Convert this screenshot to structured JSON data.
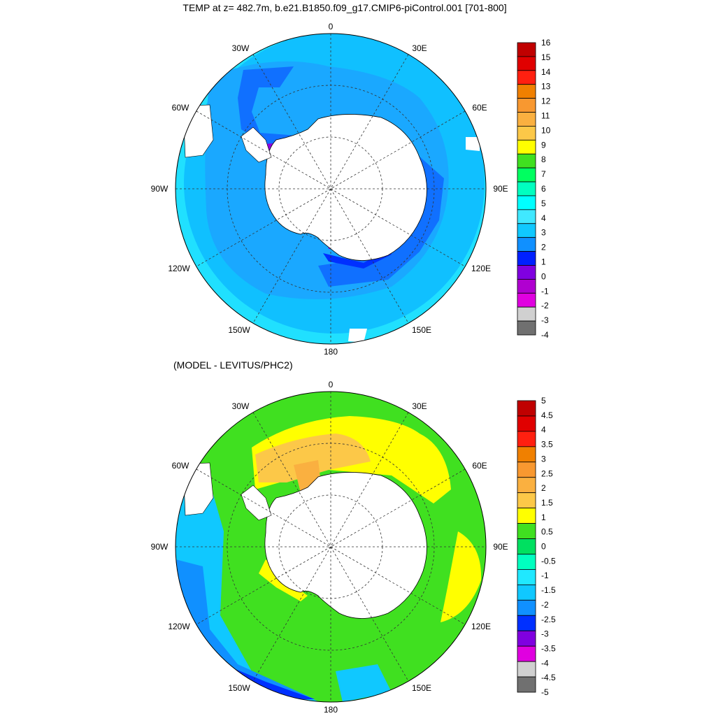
{
  "panels": [
    {
      "title": "TEMP at z= 482.7m, b.e21.B1850.f09_g17.CMIP6-piControl.001 [701-800]",
      "lon_labels": {
        "0": "0",
        "30E": "30E",
        "60E": "60E",
        "90E": "90E",
        "120E": "120E",
        "150E": "150E",
        "180": "180",
        "150W": "150W",
        "120W": "120W",
        "90W": "90W",
        "60W": "60W",
        "30W": "30W"
      },
      "colorbar": {
        "labels": [
          "16",
          "15",
          "14",
          "13",
          "12",
          "11",
          "10",
          "9",
          "8",
          "7",
          "6",
          "5",
          "4",
          "3",
          "2",
          "1",
          "0",
          "-1",
          "-2",
          "-3",
          "-4"
        ],
        "colors": [
          "#c00000",
          "#e00000",
          "#ff2010",
          "#f08000",
          "#f89830",
          "#fab040",
          "#fcc848",
          "#ffff00",
          "#40e020",
          "#00ff60",
          "#00ffc0",
          "#00ffff",
          "#40e8ff",
          "#10c8ff",
          "#1090ff",
          "#0020ff",
          "#8000e0",
          "#b000d0",
          "#e000e0",
          "#d0d0d0",
          "#707070"
        ]
      },
      "fields": {
        "base": "#10c0ff",
        "outer_ring": "#20e0ff",
        "mid": "#1aa8ff",
        "coastal": "#1070ff",
        "coastal_deep": "#0030ff",
        "cold_spot": "#9000e0",
        "land": "#ffffff"
      }
    },
    {
      "title": "(MODEL - LEVITUS/PHC2)",
      "lon_labels": {
        "0": "0",
        "30E": "30E",
        "60E": "60E",
        "90E": "90E",
        "120E": "120E",
        "150E": "150E",
        "180": "180",
        "150W": "150W",
        "120W": "120W",
        "90W": "90W",
        "60W": "60W",
        "30W": "30W"
      },
      "colorbar": {
        "labels": [
          "5",
          "4.5",
          "4",
          "3.5",
          "3",
          "2.5",
          "2",
          "1.5",
          "1",
          "0.5",
          "0",
          "-0.5",
          "-1",
          "-1.5",
          "-2",
          "-2.5",
          "-3",
          "-3.5",
          "-4",
          "-4.5",
          "-5"
        ],
        "colors": [
          "#c00000",
          "#e00000",
          "#ff2010",
          "#f08000",
          "#f89830",
          "#fab040",
          "#fcc848",
          "#ffff00",
          "#40e020",
          "#00e060",
          "#00ffc0",
          "#20e8ff",
          "#10c8ff",
          "#1090ff",
          "#0030ff",
          "#8000e0",
          "#e000e0",
          "#d0d0d0",
          "#707070"
        ]
      },
      "fields": {
        "base": "#40e020",
        "green_light": "#5aea2a",
        "yellow": "#ffff00",
        "gold": "#fcc848",
        "orange": "#fab040",
        "cyan": "#10c8ff",
        "blue": "#1090ff",
        "deep_blue": "#0030ff",
        "teal": "#00e0b0",
        "land": "#ffffff"
      }
    }
  ]
}
